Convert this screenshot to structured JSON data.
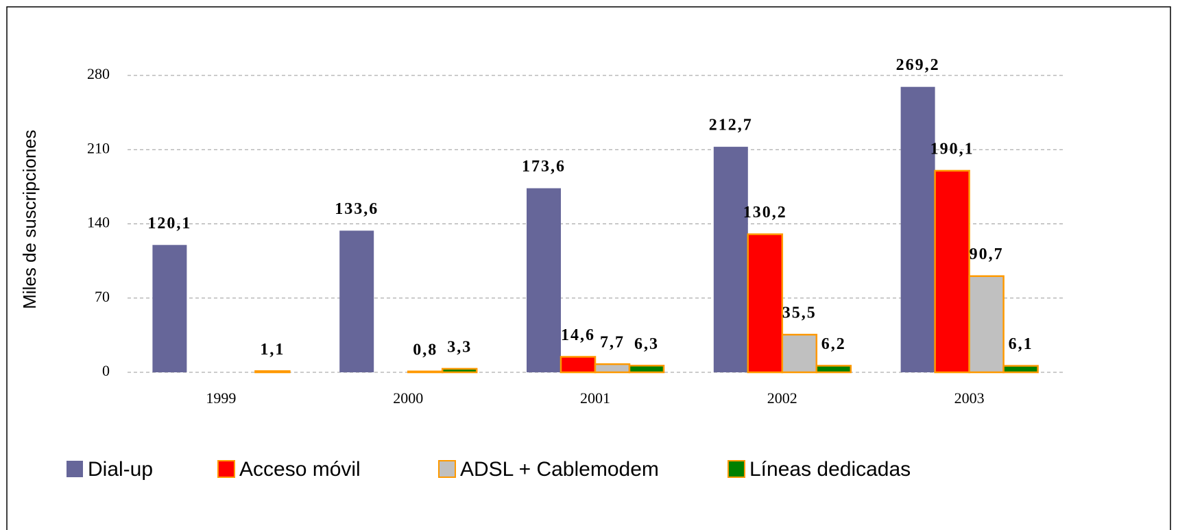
{
  "chart_data": {
    "type": "bar",
    "y_label": "Miles de suscripciones",
    "categories": [
      "1999",
      "2000",
      "2001",
      "2002",
      "2003"
    ],
    "edgecolor": "#ff9900",
    "series": [
      {
        "name": "Dial-up",
        "color": "#666699",
        "values": [
          120.1,
          133.6,
          173.6,
          212.7,
          269.2
        ],
        "value_labels": [
          "120,1",
          "133,6",
          "173,6",
          "212,7",
          "269,2"
        ]
      },
      {
        "name": "Acceso móvil",
        "color": "#ff0000",
        "values": [
          null,
          null,
          14.6,
          130.2,
          190.1
        ],
        "value_labels": [
          null,
          null,
          "14,6",
          "130,2",
          "190,1"
        ]
      },
      {
        "name": "ADSL + Cablemodem",
        "color": "#c0c0c0",
        "values": [
          null,
          0.8,
          7.7,
          35.5,
          90.7
        ],
        "value_labels": [
          null,
          "0,8",
          "7,7",
          "35,5",
          "90,7"
        ]
      },
      {
        "name": "Líneas dedicadas",
        "color": "#008000",
        "values": [
          1.1,
          3.3,
          6.3,
          6.2,
          6.1
        ],
        "value_labels": [
          "1,1",
          "3,3",
          "6,3",
          "6,2",
          "6,1"
        ]
      }
    ],
    "ylim": [
      0,
      280
    ],
    "yticks": [
      0,
      70,
      140,
      210,
      280
    ],
    "grid": true
  }
}
